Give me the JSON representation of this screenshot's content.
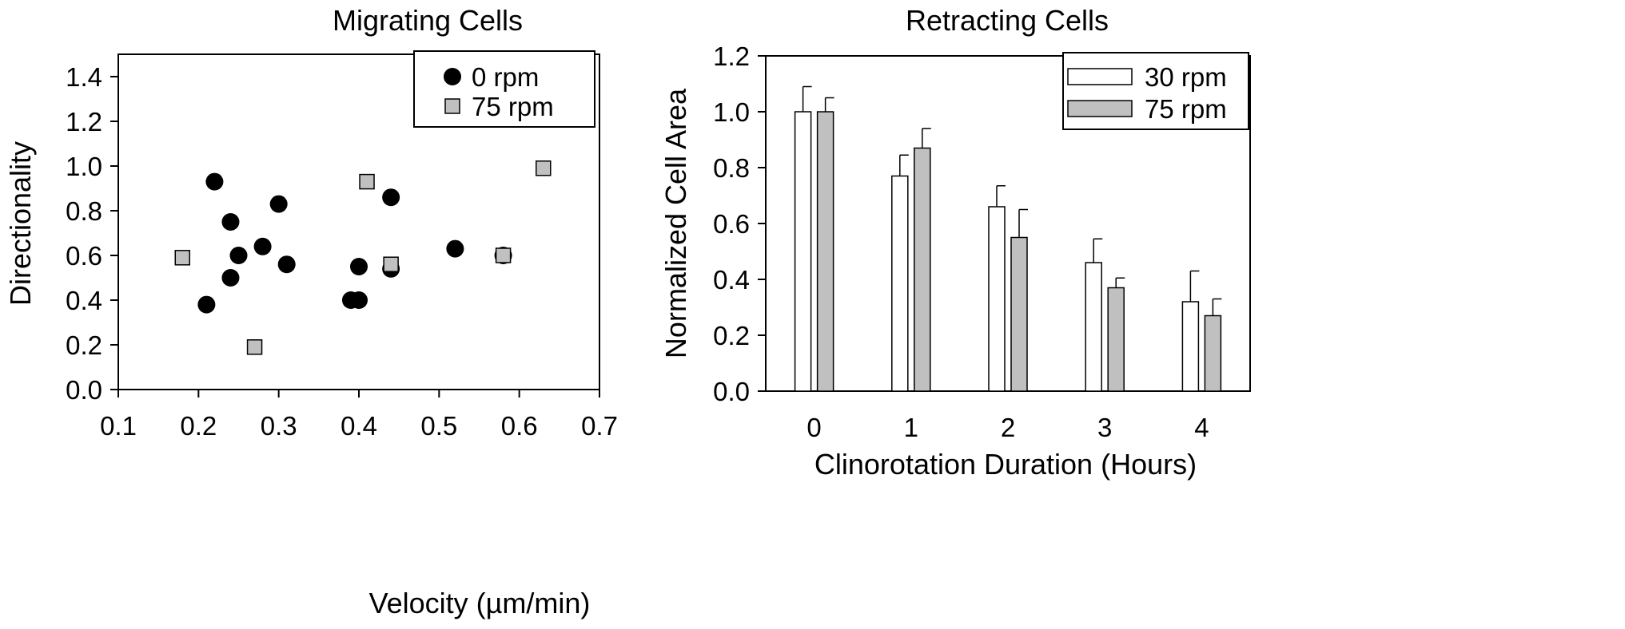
{
  "chart_data": [
    {
      "type": "scatter",
      "title": "Migrating Cells",
      "xlabel": "Velocity (µm/min)",
      "ylabel": "Directionality",
      "xlim": [
        0.1,
        0.7
      ],
      "ylim": [
        0.0,
        1.5
      ],
      "xticks": [
        "0.1",
        "0.2",
        "0.3",
        "0.4",
        "0.5",
        "0.6",
        "0.7"
      ],
      "yticks": [
        "0.0",
        "0.2",
        "0.4",
        "0.6",
        "0.8",
        "1.0",
        "1.2",
        "1.4"
      ],
      "legend_position": "top-right",
      "series": [
        {
          "name": "0 rpm",
          "marker": "circle",
          "color": "#000000",
          "points": [
            [
              0.21,
              0.38
            ],
            [
              0.22,
              0.93
            ],
            [
              0.24,
              0.75
            ],
            [
              0.24,
              0.5
            ],
            [
              0.25,
              0.6
            ],
            [
              0.28,
              0.64
            ],
            [
              0.3,
              0.83
            ],
            [
              0.31,
              0.56
            ],
            [
              0.39,
              0.4
            ],
            [
              0.4,
              0.4
            ],
            [
              0.4,
              0.55
            ],
            [
              0.44,
              0.54
            ],
            [
              0.44,
              0.86
            ],
            [
              0.52,
              0.63
            ],
            [
              0.58,
              0.6
            ]
          ]
        },
        {
          "name": "75 rpm",
          "marker": "square",
          "color": "#c0c0c0",
          "points": [
            [
              0.18,
              0.59
            ],
            [
              0.27,
              0.19
            ],
            [
              0.41,
              0.93
            ],
            [
              0.44,
              0.56
            ],
            [
              0.58,
              0.6
            ],
            [
              0.63,
              0.99
            ]
          ]
        }
      ]
    },
    {
      "type": "bar",
      "title": "Retracting Cells",
      "xlabel": "Clinorotation Duration (Hours)",
      "ylabel": "Normalized Cell Area",
      "categories": [
        "0",
        "1",
        "2",
        "3",
        "4"
      ],
      "ylim": [
        0.0,
        1.2
      ],
      "yticks": [
        "0.0",
        "0.2",
        "0.4",
        "0.6",
        "0.8",
        "1.0",
        "1.2"
      ],
      "legend_position": "top-right",
      "series": [
        {
          "name": "30 rpm",
          "color": "#ffffff",
          "values": [
            1.0,
            0.77,
            0.66,
            0.46,
            0.32
          ],
          "errors": [
            0.09,
            0.075,
            0.075,
            0.085,
            0.11
          ]
        },
        {
          "name": "75 rpm",
          "color": "#c0c0c0",
          "values": [
            1.0,
            0.87,
            0.55,
            0.37,
            0.27
          ],
          "errors": [
            0.05,
            0.07,
            0.1,
            0.035,
            0.06
          ]
        }
      ]
    }
  ]
}
